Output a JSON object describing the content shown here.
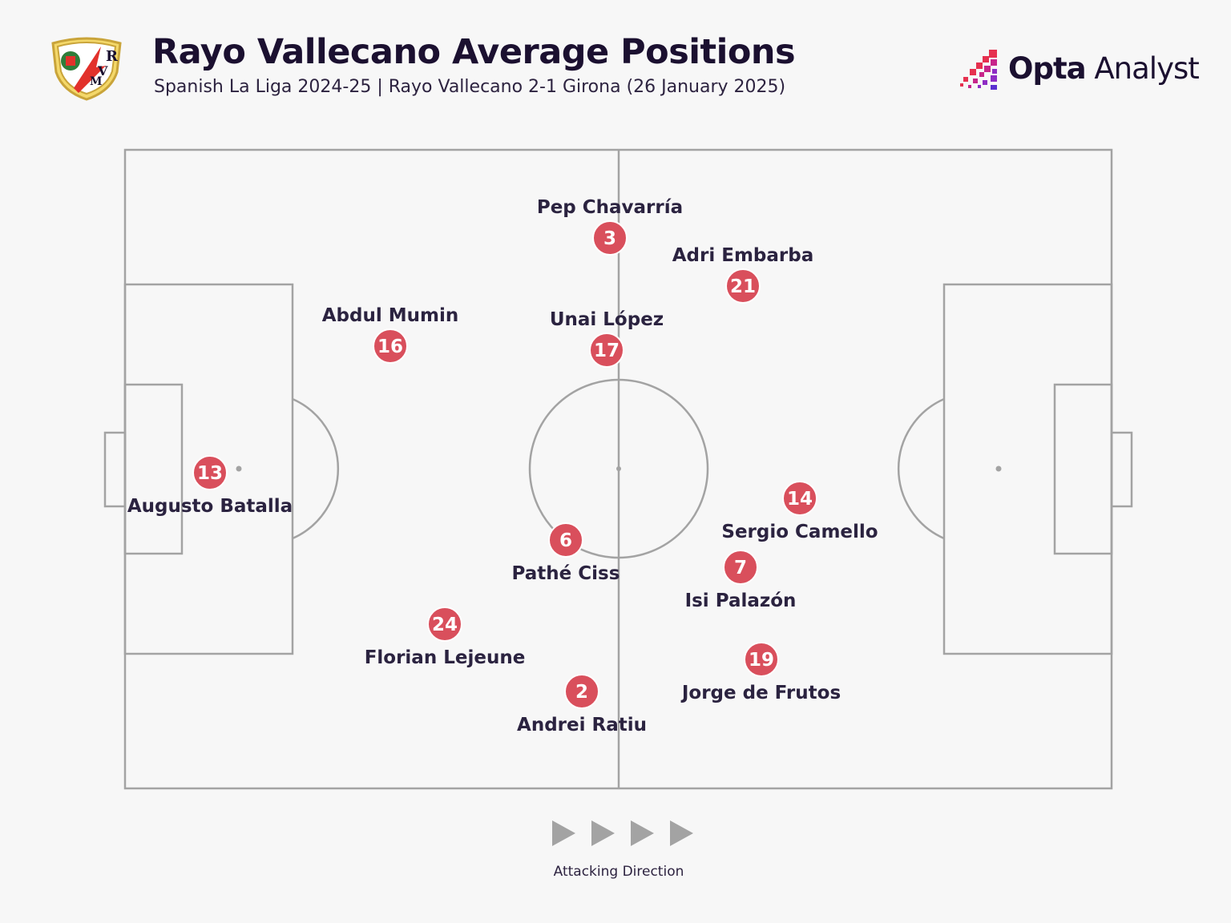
{
  "header": {
    "title": "Rayo Vallecano Average Positions",
    "subtitle": "Spanish La Liga 2024-25 | Rayo Vallecano 2-1 Girona (26 January 2025)",
    "crest_icon": "rayo-vallecano-crest-icon",
    "crest_lettering": "RVM"
  },
  "brand": {
    "name_bold": "Opta",
    "name_regular": " Analyst",
    "icon": "opta-pixel-logo-icon"
  },
  "colors": {
    "background": "#f7f7f7",
    "pitch_lines": "#a3a3a3",
    "player_marker": "#d94f5c",
    "text": "#2b2340"
  },
  "players": [
    {
      "number": "3",
      "name": "Pep Chavarría",
      "label_position": "above"
    },
    {
      "number": "21",
      "name": "Adri Embarba",
      "label_position": "above"
    },
    {
      "number": "16",
      "name": "Abdul Mumin",
      "label_position": "above"
    },
    {
      "number": "17",
      "name": "Unai López",
      "label_position": "above"
    },
    {
      "number": "13",
      "name": "Augusto Batalla",
      "label_position": "below"
    },
    {
      "number": "14",
      "name": "Sergio Camello",
      "label_position": "below"
    },
    {
      "number": "6",
      "name": "Pathé Ciss",
      "label_position": "below"
    },
    {
      "number": "7",
      "name": "Isi Palazón",
      "label_position": "below"
    },
    {
      "number": "24",
      "name": "Florian Lejeune",
      "label_position": "below"
    },
    {
      "number": "19",
      "name": "Jorge de Frutos",
      "label_position": "below"
    },
    {
      "number": "2",
      "name": "Andrei Ratiu",
      "label_position": "below"
    }
  ],
  "footer": {
    "direction_label": "Attacking Direction",
    "direction_icon": "play-arrows-icon"
  }
}
